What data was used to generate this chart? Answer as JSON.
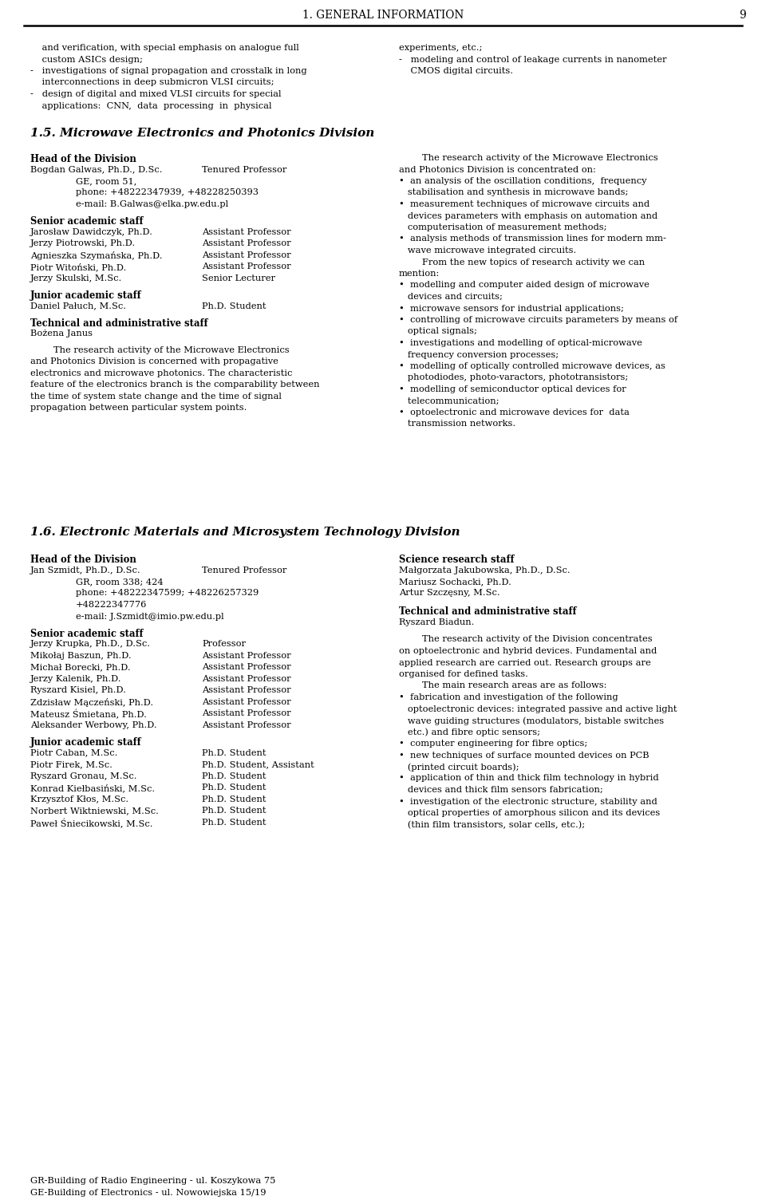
{
  "title": "1. GENERAL INFORMATION",
  "page_number": "9",
  "bg_color": "#ffffff",
  "section_title": "1.5. Microwave Electronics and Photonics Division",
  "section2_title": "1.6. Electronic Materials and Microsystem Technology Division",
  "top_left_lines": [
    [
      "    and verification, with special emphasis on analogue full",
      false
    ],
    [
      "    custom ASICs design;",
      false
    ],
    [
      "-   investigations of signal propagation and crosstalk in long",
      false
    ],
    [
      "    interconnections in deep submicron VLSI circuits;",
      false
    ],
    [
      "-   design of digital and mixed VLSI circuits for special",
      false
    ],
    [
      "    applications:  CNN,  data  processing  in  physical",
      false
    ]
  ],
  "top_right_lines": [
    [
      "experiments, etc.;",
      false
    ],
    [
      "-   modeling and control of leakage currents in nanometer",
      false
    ],
    [
      "    CMOS digital circuits.",
      false
    ]
  ],
  "head_of_division_label": "Head of the Division",
  "head_name": "Bogdan Galwas, Ph.D., D.Sc.",
  "head_title_role": "Tenured Professor",
  "head_address": "GE, room 51,",
  "head_phone": "phone: +48222347939, +48228250393",
  "head_email": "e-mail: B.Galwas@elka.pw.edu.pl",
  "senior_label": "Senior academic staff",
  "senior_staff": [
    [
      "Jarosław Dawidczyk, Ph.D.",
      "Assistant Professor"
    ],
    [
      "Jerzy Piotrowski, Ph.D.",
      "Assistant Professor"
    ],
    [
      "Agnieszka Szymańska, Ph.D.",
      "Assistant Professor"
    ],
    [
      "Piotr Witoński, Ph.D.",
      "Assistant Professor"
    ],
    [
      "Jerzy Skulski, M.Sc.",
      "Senior Lecturer"
    ]
  ],
  "junior_label": "Junior academic staff",
  "junior_staff": [
    [
      "Daniel Pałuch, M.Sc.",
      "Ph.D. Student"
    ]
  ],
  "tech_label": "Technical and administrative staff",
  "tech_staff": [
    "Bożena Janus"
  ],
  "left_para": [
    "        The research activity of the Microwave Electronics",
    "and Photonics Division is concerned with propagative",
    "electronics and microwave photonics. The characteristic",
    "feature of the electronics branch is the comparability between",
    "the time of system state change and the time of signal",
    "propagation between particular system points."
  ],
  "right_col_lines": [
    [
      "        The research activity of the Microwave Electronics",
      false
    ],
    [
      "and Photonics Division is concentrated on:",
      false
    ],
    [
      "•  an analysis of the oscillation conditions,  frequency",
      false
    ],
    [
      "   stabilisation and synthesis in microwave bands;",
      false
    ],
    [
      "•  measurement techniques of microwave circuits and",
      false
    ],
    [
      "   devices parameters with emphasis on automation and",
      false
    ],
    [
      "   computerisation of measurement methods;",
      false
    ],
    [
      "•  analysis methods of transmission lines for modern mm-",
      false
    ],
    [
      "   wave microwave integrated circuits.",
      false
    ],
    [
      "        From the new topics of research activity we can",
      false
    ],
    [
      "mention:",
      false
    ],
    [
      "•  modelling and computer aided design of microwave",
      false
    ],
    [
      "   devices and circuits;",
      false
    ],
    [
      "•  microwave sensors for industrial applications;",
      false
    ],
    [
      "•  controlling of microwave circuits parameters by means of",
      false
    ],
    [
      "   optical signals;",
      false
    ],
    [
      "•  investigations and modelling of optical-microwave",
      false
    ],
    [
      "   frequency conversion processes;",
      false
    ],
    [
      "•  modelling of optically controlled microwave devices, as",
      false
    ],
    [
      "   photodiodes, photo-varactors, phototransistors;",
      false
    ],
    [
      "•  modelling of semiconductor optical devices for",
      false
    ],
    [
      "   telecommunication;",
      false
    ],
    [
      "•  optoelectronic and microwave devices for  data",
      false
    ],
    [
      "   transmission networks.",
      false
    ]
  ],
  "sec2_head_label": "Head of the Division",
  "sec2_head_name": "Jan Szmidt, Ph.D., D.Sc.",
  "sec2_head_role": "Tenured Professor",
  "sec2_head_address": "GR, room 338; 424",
  "sec2_head_phone": "phone: +48222347599; +48226257329",
  "sec2_head_phone2": "+48222347776",
  "sec2_head_email": "e-mail: J.Szmidt@imio.pw.edu.pl",
  "sec2_senior_label": "Senior academic staff",
  "sec2_senior_staff": [
    [
      "Jerzy Krupka, Ph.D., D.Sc.",
      "Professor"
    ],
    [
      "Mikołaj Baszun, Ph.D.",
      "Assistant Professor"
    ],
    [
      "Michał Borecki, Ph.D.",
      "Assistant Professor"
    ],
    [
      "Jerzy Kalenik, Ph.D.",
      "Assistant Professor"
    ],
    [
      "Ryszard Kisiel, Ph.D.",
      "Assistant Professor"
    ],
    [
      "Zdzisław Mączeński, Ph.D.",
      "Assistant Professor"
    ],
    [
      "Mateusz Śmietana, Ph.D.",
      "Assistant Professor"
    ],
    [
      "Aleksander Werbowy, Ph.D.",
      "Assistant Professor"
    ]
  ],
  "sec2_junior_label": "Junior academic staff",
  "sec2_junior_staff": [
    [
      "Piotr Caban, M.Sc.",
      "Ph.D. Student"
    ],
    [
      "Piotr Firek, M.Sc.",
      "Ph.D. Student, Assistant"
    ],
    [
      "Ryszard Gronau, M.Sc.",
      "Ph.D. Student"
    ],
    [
      "Konrad Kiełbasiński, M.Sc.",
      "Ph.D. Student"
    ],
    [
      "Krzysztof Kłos, M.Sc.",
      "Ph.D. Student"
    ],
    [
      "Norbert Wiktniewski, M.Sc.",
      "Ph.D. Student"
    ],
    [
      "Paweł Śniecikowski, M.Sc.",
      "Ph.D. Student"
    ]
  ],
  "sec2_right_science_label": "Science research staff",
  "sec2_right_science": [
    "Małgorzata Jakubowska, Ph.D., D.Sc.",
    "Mariusz Sochacki, Ph.D.",
    "Artur Szczęsny, M.Sc."
  ],
  "sec2_right_tech_label": "Technical and administrative staff",
  "sec2_right_tech": [
    "Ryszard Biadun."
  ],
  "sec2_right_para": [
    "        The research activity of the Division concentrates",
    "on optoelectronic and hybrid devices. Fundamental and",
    "applied research are carried out. Research groups are",
    "organised for defined tasks.",
    "        The main research areas are as follows:",
    "•  fabrication and investigation of the following",
    "   optoelectronic devices: integrated passive and active light",
    "   wave guiding structures (modulators, bistable switches",
    "   etc.) and fibre optic sensors;",
    "•  computer engineering for fibre optics;",
    "•  new techniques of surface mounted devices on PCB",
    "   (printed circuit boards);",
    "•  application of thin and thick film technology in hybrid",
    "   devices and thick film sensors fabrication;",
    "•  investigation of the electronic structure, stability and",
    "   optical properties of amorphous silicon and its devices",
    "   (thin film transistors, solar cells, etc.);"
  ],
  "footer_line1": "GR-Building of Radio Engineering - ul. Koszykowa 75",
  "footer_line2": "GE-Building of Electronics - ul. Nowowiejska 15/19"
}
